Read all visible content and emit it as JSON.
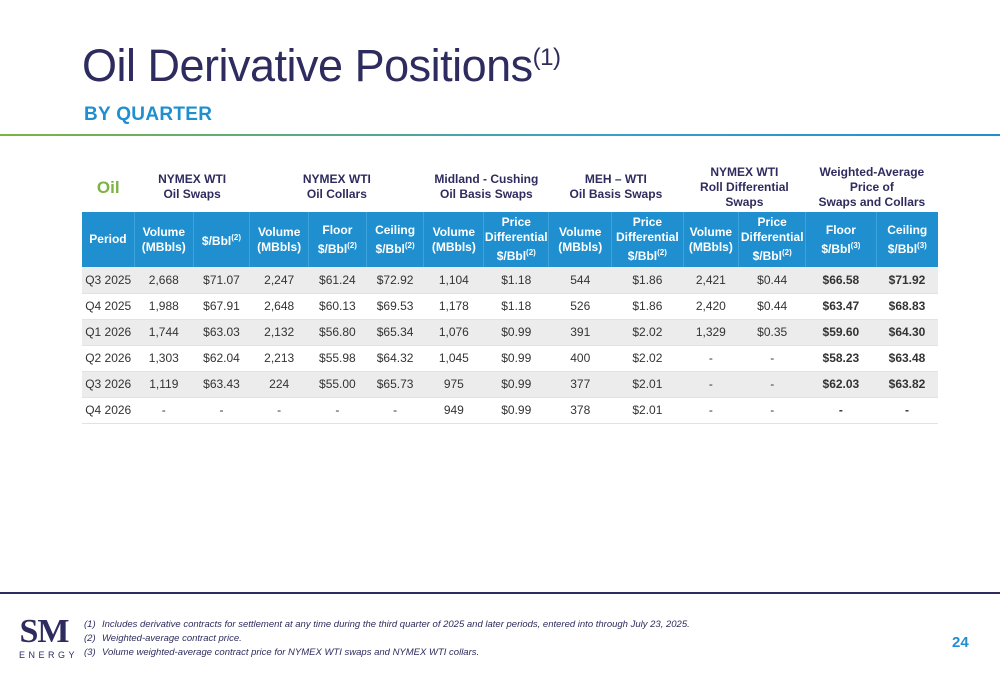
{
  "title": {
    "text": "Oil Derivative Positions",
    "sup": "(1)"
  },
  "subtitle": "BY QUARTER",
  "table": {
    "corner_label": "Oil",
    "groups": [
      {
        "label_lines": [
          "NYMEX WTI",
          "Oil Swaps"
        ],
        "span": 2
      },
      {
        "label_lines": [
          "NYMEX WTI",
          "Oil Collars"
        ],
        "span": 3
      },
      {
        "label_lines": [
          "Midland - Cushing",
          "Oil Basis Swaps"
        ],
        "span": 2
      },
      {
        "label_lines": [
          "MEH – WTI",
          "Oil Basis Swaps"
        ],
        "span": 2
      },
      {
        "label_lines": [
          "NYMEX WTI",
          "Roll Differential",
          "Swaps"
        ],
        "span": 2
      },
      {
        "label_lines": [
          "Weighted-Average Price of",
          "Swaps and Collars"
        ],
        "span": 2
      }
    ],
    "columns": [
      {
        "lines": [
          "Period"
        ]
      },
      {
        "lines": [
          "Volume",
          "(MBbls)"
        ]
      },
      {
        "lines": [
          "$/Bbl"
        ],
        "sup": "(2)"
      },
      {
        "lines": [
          "Volume",
          "(MBbls)"
        ]
      },
      {
        "lines": [
          "Floor",
          "$/Bbl"
        ],
        "sup": "(2)"
      },
      {
        "lines": [
          "Ceiling",
          "$/Bbl"
        ],
        "sup": "(2)"
      },
      {
        "lines": [
          "Volume",
          "(MBbls)"
        ]
      },
      {
        "lines": [
          "Price",
          "Differential",
          "$/Bbl"
        ],
        "sup": "(2)"
      },
      {
        "lines": [
          "Volume",
          "(MBbls)"
        ]
      },
      {
        "lines": [
          "Price",
          "Differential",
          "$/Bbl"
        ],
        "sup": "(2)"
      },
      {
        "lines": [
          "Volume",
          "(MBbls)"
        ]
      },
      {
        "lines": [
          "Price",
          "Differential",
          "$/Bbl"
        ],
        "sup": "(2)"
      },
      {
        "lines": [
          "Floor",
          "$/Bbl"
        ],
        "sup": "(3)"
      },
      {
        "lines": [
          "Ceiling",
          "$/Bbl"
        ],
        "sup": "(3)"
      }
    ],
    "rows": [
      [
        "Q3 2025",
        "2,668",
        "$71.07",
        "2,247",
        "$61.24",
        "$72.92",
        "1,104",
        "$1.18",
        "544",
        "$1.86",
        "2,421",
        "$0.44",
        "$66.58",
        "$71.92"
      ],
      [
        "Q4 2025",
        "1,988",
        "$67.91",
        "2,648",
        "$60.13",
        "$69.53",
        "1,178",
        "$1.18",
        "526",
        "$1.86",
        "2,420",
        "$0.44",
        "$63.47",
        "$68.83"
      ],
      [
        "Q1 2026",
        "1,744",
        "$63.03",
        "2,132",
        "$56.80",
        "$65.34",
        "1,076",
        "$0.99",
        "391",
        "$2.02",
        "1,329",
        "$0.35",
        "$59.60",
        "$64.30"
      ],
      [
        "Q2 2026",
        "1,303",
        "$62.04",
        "2,213",
        "$55.98",
        "$64.32",
        "1,045",
        "$0.99",
        "400",
        "$2.02",
        "-",
        "-",
        "$58.23",
        "$63.48"
      ],
      [
        "Q3 2026",
        "1,119",
        "$63.43",
        "224",
        "$55.00",
        "$65.73",
        "975",
        "$0.99",
        "377",
        "$2.01",
        "-",
        "-",
        "$62.03",
        "$63.82"
      ],
      [
        "Q4 2026",
        "-",
        "-",
        "-",
        "-",
        "-",
        "949",
        "$0.99",
        "378",
        "$2.01",
        "-",
        "-",
        "-",
        "-"
      ]
    ]
  },
  "footnotes": [
    {
      "num": "(1)",
      "text": "Includes derivative contracts for settlement at any time during the third quarter of 2025 and later periods, entered into through July 23, 2025."
    },
    {
      "num": "(2)",
      "text": "Weighted-average contract price."
    },
    {
      "num": "(3)",
      "text": "Volume weighted-average contract price for NYMEX WTI swaps and NYMEX WTI collars."
    }
  ],
  "logo": {
    "mark": "SM",
    "word": "ENERGY"
  },
  "page_number": "24",
  "colors": {
    "navy": "#2e2c5e",
    "blue": "#1f8fcf",
    "green": "#7cb342",
    "row_shade": "#ececec"
  }
}
